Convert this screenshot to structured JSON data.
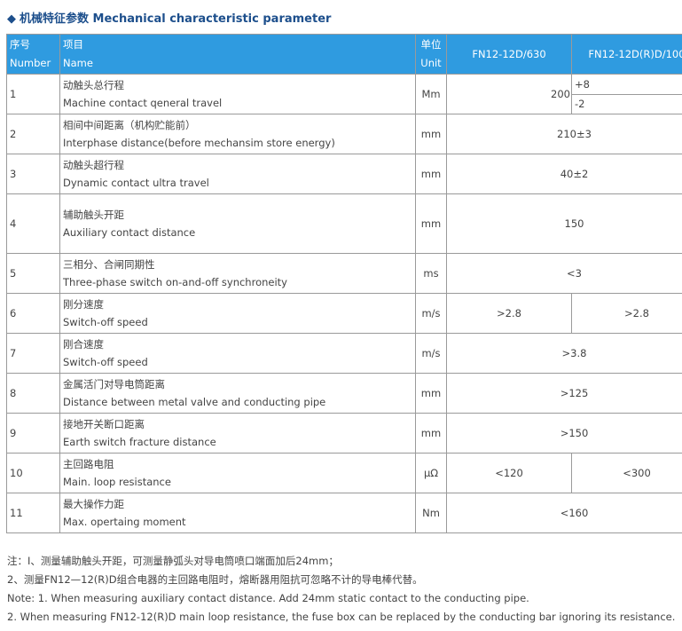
{
  "title": {
    "marker": "◆",
    "zh": "机械特征参数",
    "en": "Mechanical characteristic parameter"
  },
  "header": {
    "num_zh": "序号",
    "num_en": "Number",
    "name_zh": "项目",
    "name_en": "Name",
    "unit_zh": "单位",
    "unit_en": "Unit",
    "col1": "FN12-12D/630",
    "col2": "FN12-12D(R)D/100"
  },
  "rows": [
    {
      "num": "1",
      "zh": "动触头总行程",
      "en": "Machine contact qeneral travel",
      "unit": "Mm",
      "base": "200",
      "plus": "+8",
      "minus": "-2"
    },
    {
      "num": "2",
      "zh": "相间中间距离（机构贮能前）",
      "en": "Interphase distance(before mechansim store energy)",
      "unit": "mm",
      "value": "210±3"
    },
    {
      "num": "3",
      "zh": "动触头超行程",
      "en": "Dynamic contact ultra travel",
      "unit": "mm",
      "value": "40±2"
    },
    {
      "num": "4",
      "zh": "辅助触头开距",
      "en": "Auxiliary contact distance",
      "unit": "mm",
      "value": "150"
    },
    {
      "num": "5",
      "zh": "三相分、合闸同期性",
      "en": "Three-phase switch on-and-off synchroneity",
      "unit": "ms",
      "value": "<3"
    },
    {
      "num": "6",
      "zh": "刚分速度",
      "en": "Switch-off speed",
      "unit": "m/s",
      "v1": ">2.8",
      "v2": ">2.8"
    },
    {
      "num": "7",
      "zh": "刚合速度",
      "en": "Switch-off speed",
      "unit": "m/s",
      "value": ">3.8"
    },
    {
      "num": "8",
      "zh": "金属活门对导电筒距离",
      "en": "Distance between metal valve and conducting pipe",
      "unit": "mm",
      "value": ">125"
    },
    {
      "num": "9",
      "zh": "接地开关断口距离",
      "en": "Earth switch fracture distance",
      "unit": "mm",
      "value": ">150"
    },
    {
      "num": "10",
      "zh": "主回路电阻",
      "en": "Main. loop resistance",
      "unit": "μΩ",
      "v1": "<120",
      "v2": "<300"
    },
    {
      "num": "11",
      "zh": "最大操作力距",
      "en": "Max. opertaing moment",
      "unit": "Nm",
      "value": "<160"
    }
  ],
  "notes": [
    "注：I、测量辅助触头开距，可测量静弧头对导电筒喷口端面加后24mm；",
    "2、测量FN12—12(R)D组合电器的主回路电阻时，熔断器用阻抗可忽略不计的导电棒代替。",
    "Note: 1. When measuring auxiliary contact distance. Add 24mm static contact to the conducting pipe.",
    "2. When measuring FN12-12(R)D main loop resistance, the fuse box can be replaced by the conducting bar ignoring its resistance."
  ]
}
